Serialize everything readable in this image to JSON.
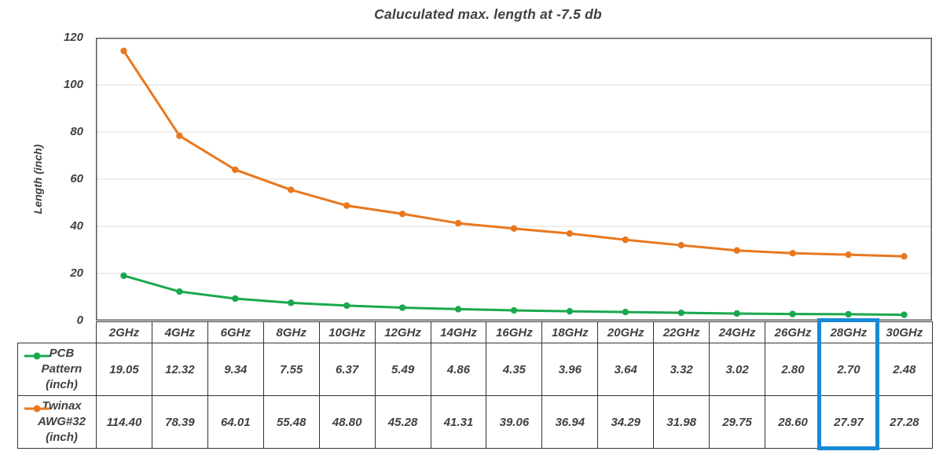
{
  "title": "Caluculated max. length at -7.5 db",
  "chart_data": {
    "type": "line",
    "title": "Caluculated max. length at -7.5 db",
    "xlabel": "",
    "ylabel": "Length (inch)",
    "ylim": [
      0,
      120
    ],
    "yticks": [
      0,
      20,
      40,
      60,
      80,
      100,
      120
    ],
    "grid": "horizontal",
    "legend_position": "table-left",
    "categories": [
      "2GHz",
      "4GHz",
      "6GHz",
      "8GHz",
      "10GHz",
      "12GHz",
      "14GHz",
      "16GHz",
      "18GHz",
      "20GHz",
      "22GHz",
      "24GHz",
      "26GHz",
      "28GHz",
      "30GHz"
    ],
    "series": [
      {
        "name": "PCB Pattern (inch)",
        "label_lines": "PCB\nPattern\n(inch)",
        "color": "#1AA84D",
        "values": [
          19.05,
          12.32,
          9.34,
          7.55,
          6.37,
          5.49,
          4.86,
          4.35,
          3.96,
          3.64,
          3.32,
          3.02,
          2.8,
          2.7,
          2.48
        ]
      },
      {
        "name": "Twinax AWG#32 (inch)",
        "label_lines": "Twinax\nAWG#32\n(inch)",
        "color": "#E87820",
        "values": [
          114.4,
          78.39,
          64.01,
          55.48,
          48.8,
          45.28,
          41.31,
          39.06,
          36.94,
          34.29,
          31.98,
          29.75,
          28.6,
          27.97,
          27.28
        ]
      }
    ],
    "value_format": "0.00"
  },
  "highlight": {
    "category": "28GHz",
    "column_index": 13,
    "color": "#1789D6"
  },
  "colors": {
    "pcb_series": "#1AA84D",
    "twinax_series": "#E87820",
    "highlight_blue": "#1789D6",
    "text": "#404040"
  }
}
